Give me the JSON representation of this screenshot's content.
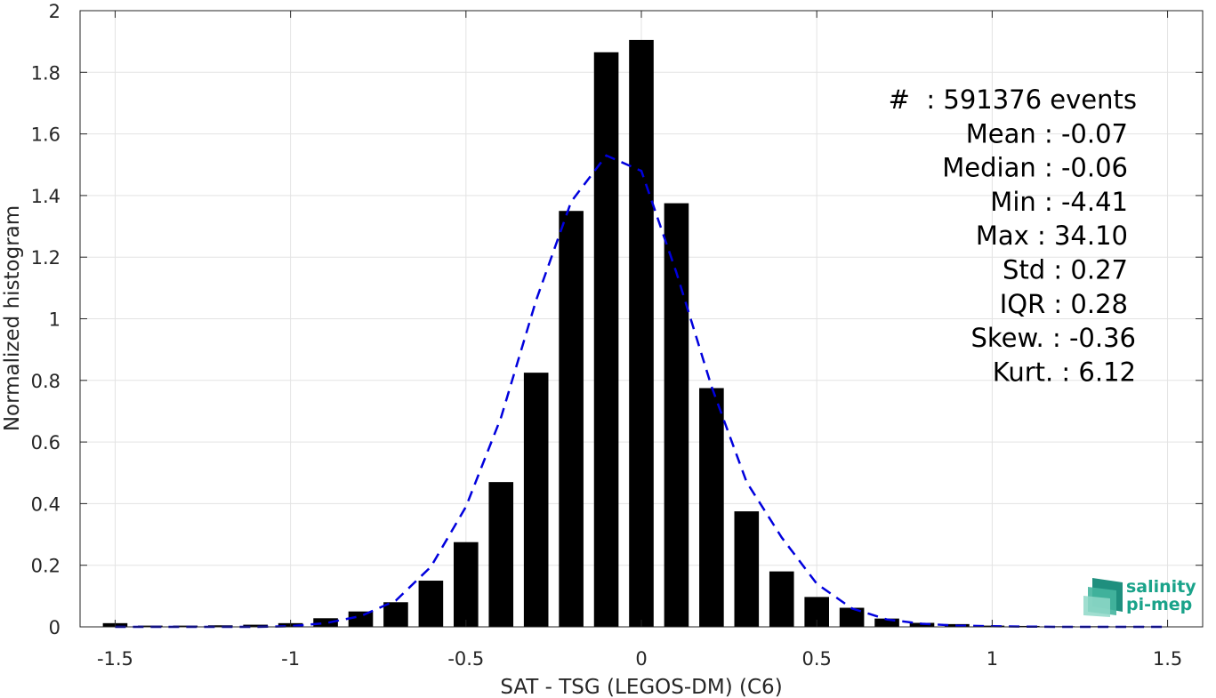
{
  "chart_data": {
    "type": "bar",
    "xlabel": "SAT - TSG (LEGOS-DM) (C6)",
    "ylabel": "Normalized histogram",
    "xlim": [
      -1.6,
      1.6
    ],
    "ylim": [
      0,
      2
    ],
    "grid": true,
    "xticks": [
      -1.5,
      -1,
      -0.5,
      0,
      0.5,
      1,
      1.5
    ],
    "xtick_labels": [
      "-1.5",
      "-1",
      "-0.5",
      "0",
      "0.5",
      "1",
      "1.5"
    ],
    "yticks": [
      0,
      0.2,
      0.4,
      0.6,
      0.8,
      1,
      1.2,
      1.4,
      1.6,
      1.8,
      2
    ],
    "ytick_labels": [
      "0",
      "0.2",
      "0.4",
      "0.6",
      "0.8",
      "1",
      "1.2",
      "1.4",
      "1.6",
      "1.8",
      "2"
    ],
    "bar_width": 0.07,
    "bar_color": "#000000",
    "x": [
      -1.5,
      -1.4,
      -1.3,
      -1.2,
      -1.1,
      -1.0,
      -0.9,
      -0.8,
      -0.7,
      -0.6,
      -0.5,
      -0.4,
      -0.3,
      -0.2,
      -0.1,
      0.0,
      0.1,
      0.2,
      0.3,
      0.4,
      0.5,
      0.6,
      0.7,
      0.8,
      0.9,
      1.0,
      1.1,
      1.2,
      1.3,
      1.4,
      1.5
    ],
    "values": [
      0.012,
      0.004,
      0.004,
      0.005,
      0.007,
      0.012,
      0.028,
      0.05,
      0.08,
      0.15,
      0.275,
      0.47,
      0.825,
      1.35,
      1.865,
      1.905,
      1.375,
      0.775,
      0.375,
      0.18,
      0.097,
      0.062,
      0.027,
      0.013,
      0.009,
      0.004,
      0.003,
      0.002,
      0.002,
      0.002,
      0.001
    ],
    "fit": {
      "style": "dashed",
      "color": "#0000dd",
      "x": [
        -1.5,
        -1.4,
        -1.3,
        -1.2,
        -1.1,
        -1.0,
        -0.9,
        -0.8,
        -0.7,
        -0.6,
        -0.5,
        -0.4,
        -0.3,
        -0.2,
        -0.1,
        0.0,
        0.1,
        0.2,
        0.3,
        0.4,
        0.5,
        0.6,
        0.7,
        0.8,
        0.9,
        1.0,
        1.1,
        1.2,
        1.3,
        1.4,
        1.5
      ],
      "y": [
        0.0,
        0.0,
        0.0,
        0.0,
        0.0,
        0.002,
        0.012,
        0.035,
        0.085,
        0.195,
        0.39,
        0.68,
        1.06,
        1.38,
        1.53,
        1.48,
        1.15,
        0.78,
        0.47,
        0.29,
        0.14,
        0.06,
        0.024,
        0.01,
        0.004,
        0.002,
        0.001,
        0.0,
        0.0,
        0.0,
        0.0
      ]
    },
    "annotations": [
      "#  : 591376 events",
      "Mean : -0.07",
      "Median : -0.06",
      "Min : -4.41",
      "Max : 34.10",
      "Std : 0.27",
      "IQR : 0.28",
      "Skew. : -0.36",
      "Kurt. : 6.12"
    ]
  },
  "logo": {
    "line1": "salinity",
    "line2": "pi-mep",
    "color": "#1aa38a"
  }
}
